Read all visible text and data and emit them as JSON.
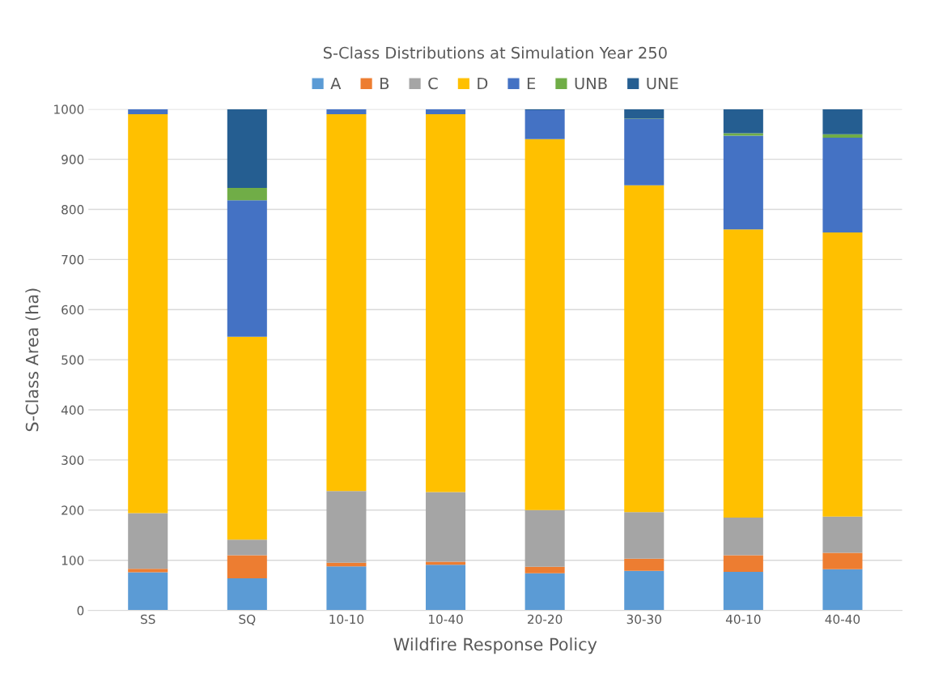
{
  "chart_data": {
    "type": "bar",
    "stacked": true,
    "title": "S-Class Distributions at Simulation Year 250",
    "xlabel": "Wildfire Response Policy",
    "ylabel": "S-Class Area (ha)",
    "categories": [
      "SS",
      "SQ",
      "10-10",
      "10-40",
      "20-20",
      "30-30",
      "40-10",
      "40-40"
    ],
    "series": [
      {
        "name": "A",
        "color": "#5b9bd5",
        "values": [
          76,
          64,
          88,
          91,
          74,
          79,
          77,
          82
        ]
      },
      {
        "name": "B",
        "color": "#ed7d31",
        "values": [
          7,
          46,
          7,
          6,
          13,
          24,
          33,
          33
        ]
      },
      {
        "name": "C",
        "color": "#a5a5a5",
        "values": [
          111,
          31,
          143,
          139,
          113,
          93,
          75,
          72
        ]
      },
      {
        "name": "D",
        "color": "#ffc000",
        "values": [
          796,
          405,
          752,
          754,
          740,
          652,
          575,
          567
        ]
      },
      {
        "name": "E",
        "color": "#4472c4",
        "values": [
          10,
          272,
          10,
          10,
          58,
          132,
          187,
          189
        ]
      },
      {
        "name": "UNB",
        "color": "#70ad47",
        "values": [
          0,
          25,
          0,
          0,
          0,
          1,
          5,
          7
        ]
      },
      {
        "name": "UNE",
        "color": "#255e91",
        "values": [
          0,
          157,
          0,
          0,
          2,
          19,
          48,
          50
        ]
      }
    ],
    "ylim": [
      0,
      1000
    ],
    "yticks": [
      0,
      100,
      200,
      300,
      400,
      500,
      600,
      700,
      800,
      900,
      1000
    ],
    "grid": "y",
    "legend": "top"
  }
}
